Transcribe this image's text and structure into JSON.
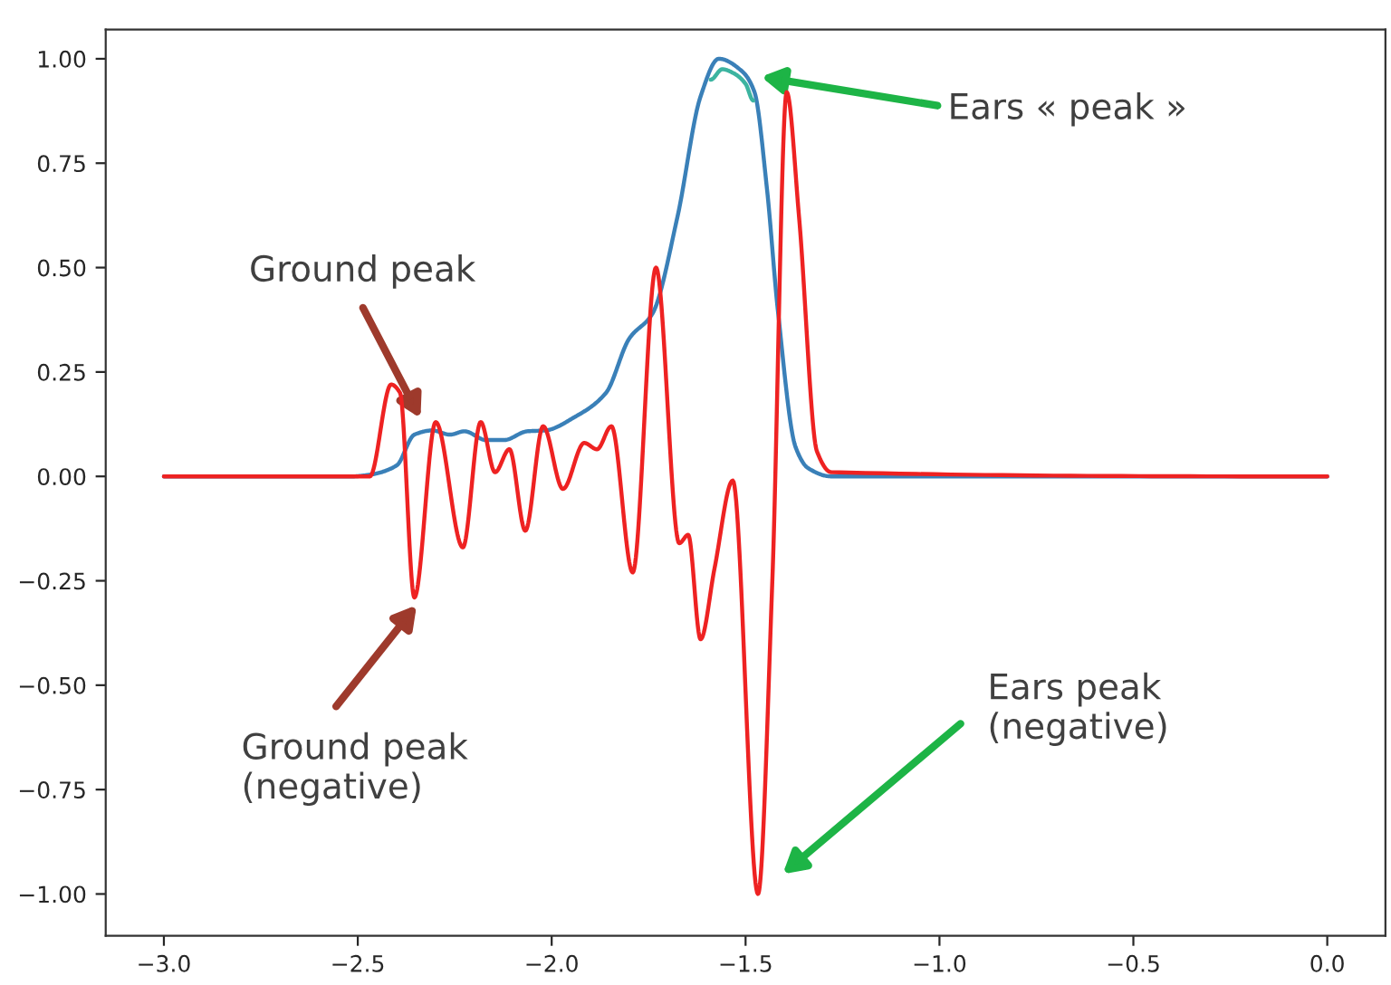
{
  "chart_data": {
    "type": "line",
    "xlim": [
      -3.15,
      0.15
    ],
    "ylim": [
      -1.1,
      1.07
    ],
    "xticks": [
      {
        "value": -3.0,
        "label": "−3.0"
      },
      {
        "value": -2.5,
        "label": "−2.5"
      },
      {
        "value": -2.0,
        "label": "−2.0"
      },
      {
        "value": -1.5,
        "label": "−1.5"
      },
      {
        "value": -1.0,
        "label": "−1.0"
      },
      {
        "value": -0.5,
        "label": "−0.5"
      },
      {
        "value": 0.0,
        "label": "0.0"
      }
    ],
    "yticks": [
      {
        "value": 1.0,
        "label": "1.00"
      },
      {
        "value": 0.75,
        "label": "0.75"
      },
      {
        "value": 0.5,
        "label": "0.50"
      },
      {
        "value": 0.25,
        "label": "0.25"
      },
      {
        "value": 0.0,
        "label": "0.00"
      },
      {
        "value": -0.25,
        "label": "−0.25"
      },
      {
        "value": -0.5,
        "label": "−0.50"
      },
      {
        "value": -0.75,
        "label": "−0.75"
      },
      {
        "value": -1.0,
        "label": "−1.00"
      }
    ],
    "grid": false,
    "legend": false,
    "marker": "none",
    "line_style": "solid",
    "series": [
      {
        "color": "#3a80b8",
        "x": [
          -3.0,
          -2.515,
          -2.469,
          -2.4,
          -2.354,
          -2.308,
          -2.262,
          -2.225,
          -2.169,
          -2.123,
          -2.063,
          -2.017,
          -1.939,
          -1.86,
          -1.8,
          -1.74,
          -1.676,
          -1.616,
          -1.569,
          -1.509,
          -1.477,
          -1.445,
          -1.417,
          -1.371,
          -1.339,
          -1.279,
          0.0
        ],
        "values": [
          0,
          0,
          0.004,
          0.026,
          0.1,
          0.11,
          0.1,
          0.108,
          0.087,
          0.087,
          0.108,
          0.11,
          0.143,
          0.2,
          0.33,
          0.39,
          0.62,
          0.91,
          1.0,
          0.97,
          0.92,
          0.69,
          0.4,
          0.07,
          0.02,
          0,
          0
        ]
      },
      {
        "color": "#3cb4a0",
        "x": [
          -1.59,
          -1.56,
          -1.53,
          -1.5,
          -1.48
        ],
        "values": [
          0.95,
          0.975,
          0.965,
          0.94,
          0.9
        ]
      },
      {
        "color": "#ee2222",
        "x": [
          -3.0,
          -2.585,
          -2.469,
          -2.414,
          -2.391,
          -2.354,
          -2.299,
          -2.229,
          -2.183,
          -2.146,
          -2.109,
          -2.068,
          -2.022,
          -1.971,
          -1.916,
          -1.883,
          -1.846,
          -1.791,
          -1.731,
          -1.671,
          -1.648,
          -1.616,
          -1.58,
          -1.533,
          -1.468,
          -1.431,
          -1.394,
          -1.362,
          -1.316,
          -1.279,
          0.0
        ],
        "values": [
          0,
          0,
          0,
          0.22,
          0.2,
          -0.29,
          0.13,
          -0.17,
          0.13,
          0.01,
          0.065,
          -0.13,
          0.12,
          -0.03,
          0.08,
          0.065,
          0.12,
          -0.23,
          0.5,
          -0.16,
          -0.14,
          -0.39,
          -0.22,
          -0.01,
          -1.0,
          -0.25,
          0.92,
          0.62,
          0.06,
          0.01,
          0
        ]
      }
    ],
    "annotations": [
      "Ground peak",
      "Ground peak\n(negative)",
      "Ears « peak »",
      "Ears peak\n(negative)"
    ]
  }
}
